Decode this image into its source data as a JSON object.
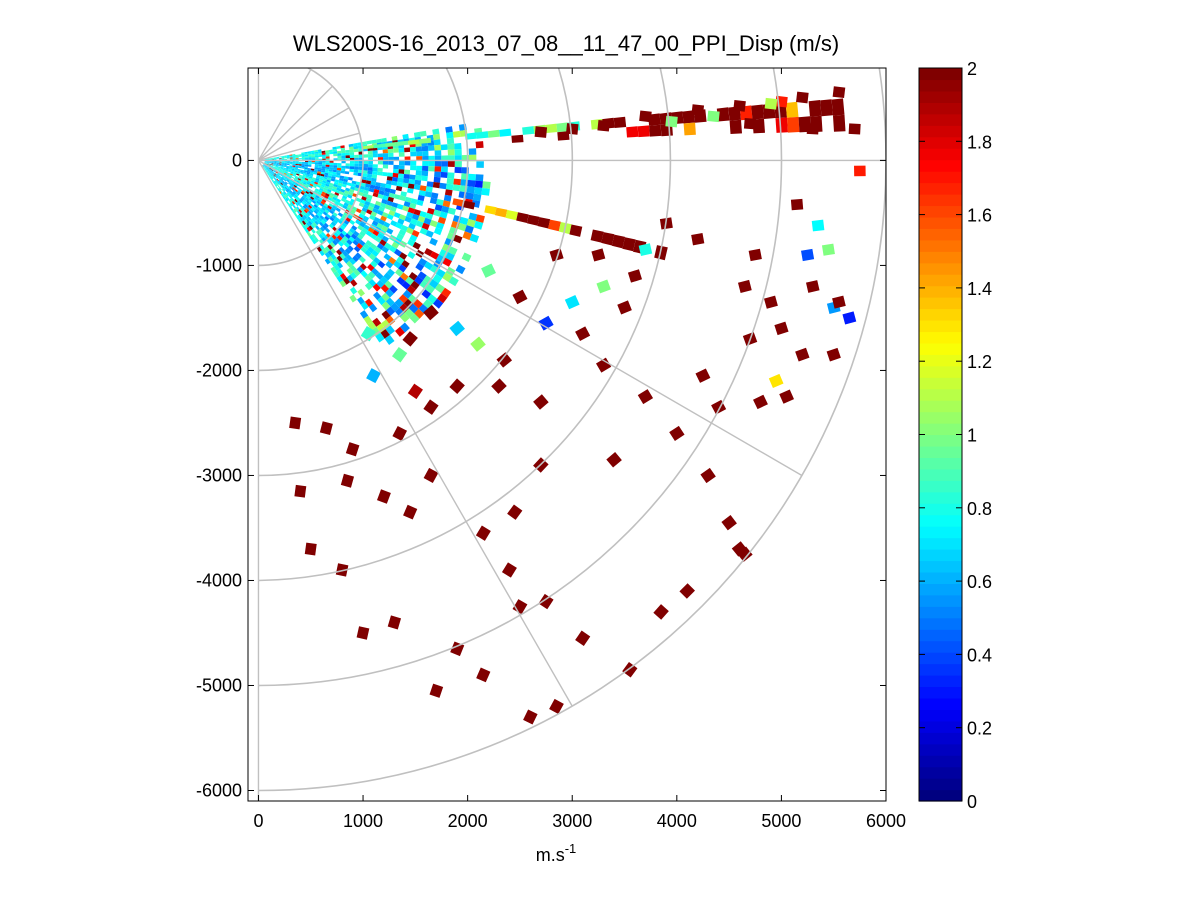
{
  "chart_data": {
    "type": "heatmap",
    "subtype": "polar-ppi-scan",
    "title": "WLS200S-16_2013_07_08__11_47_00_PPI_Disp (m/s)",
    "xlabel": "m.s",
    "xlabel_superscript": "-1",
    "ylabel": "",
    "xlim": [
      -100,
      6000
    ],
    "ylim": [
      -6100,
      880
    ],
    "xticks": [
      0,
      1000,
      2000,
      3000,
      4000,
      5000,
      6000
    ],
    "xtick_labels": [
      "0",
      "1000",
      "2000",
      "3000",
      "4000",
      "5000",
      "6000"
    ],
    "yticks": [
      0,
      -1000,
      -2000,
      -3000,
      -4000,
      -5000,
      -6000
    ],
    "ytick_labels": [
      "0",
      "-1000",
      "-2000",
      "-3000",
      "-4000",
      "-5000",
      "-6000"
    ],
    "polar_grid": {
      "origin": [
        0,
        0
      ],
      "range_rings": [
        1000,
        2000,
        3000,
        4000,
        5000,
        6000
      ],
      "radial_angles_deg": [
        60,
        45,
        30,
        15,
        0,
        -30,
        -60
      ],
      "radial_lengths": [
        1000,
        1000,
        1000,
        1000,
        6000,
        6000,
        6000
      ]
    },
    "scan": {
      "azimuth_start_deg": 10,
      "azimuth_end_deg": -75,
      "range_min": 60,
      "range_max": 5950,
      "dense_core_range": 2000,
      "dense_core_azimuth_start_deg": 10,
      "dense_core_azimuth_end_deg": -55
    },
    "colorbar": {
      "colormap": "jet",
      "min": 0,
      "max": 2,
      "ticks": [
        0,
        0.2,
        0.4,
        0.6,
        0.8,
        1,
        1.2,
        1.4,
        1.6,
        1.8,
        2
      ],
      "tick_labels": [
        "0",
        "0.2",
        "0.4",
        "0.6",
        "0.8",
        "1",
        "1.2",
        "1.4",
        "1.6",
        "1.8",
        "2"
      ]
    },
    "scattered_cells": [
      [
        5550,
        650,
        2
      ],
      [
        5200,
        600,
        2
      ],
      [
        4600,
        520,
        2
      ],
      [
        4200,
        480,
        2
      ],
      [
        3700,
        420,
        2
      ],
      [
        3300,
        330,
        2
      ],
      [
        3000,
        300,
        2
      ],
      [
        2700,
        270,
        2
      ],
      [
        5000,
        560,
        1.7
      ],
      [
        4900,
        540,
        1.1
      ],
      [
        4350,
        420,
        1.0
      ],
      [
        5700,
        300,
        2
      ],
      [
        5300,
        300,
        2
      ],
      [
        4700,
        350,
        2
      ],
      [
        3950,
        370,
        1.0
      ],
      [
        5750,
        -100,
        1.7
      ],
      [
        5350,
        -620,
        0.75
      ],
      [
        5450,
        -850,
        1.0
      ],
      [
        5300,
        -1200,
        2
      ],
      [
        5500,
        -1400,
        0.55
      ],
      [
        5650,
        -1500,
        0.3
      ],
      [
        5550,
        -1350,
        2
      ],
      [
        5500,
        -1850,
        2
      ],
      [
        5200,
        -1850,
        2
      ],
      [
        4950,
        -2100,
        1.3
      ],
      [
        4800,
        -2300,
        2
      ],
      [
        5050,
        -2250,
        2
      ],
      [
        5150,
        -420,
        2
      ],
      [
        5250,
        -900,
        0.4
      ],
      [
        5000,
        -1600,
        2
      ],
      [
        4900,
        -1350,
        2
      ],
      [
        4650,
        -1200,
        2
      ],
      [
        4750,
        -900,
        2
      ],
      [
        3600,
        -1100,
        2
      ],
      [
        3300,
        -1200,
        1.0
      ],
      [
        3000,
        -1350,
        0.7
      ],
      [
        2750,
        -1550,
        0.35
      ],
      [
        3100,
        -1650,
        2
      ],
      [
        2500,
        -1300,
        2
      ],
      [
        2200,
        -1050,
        0.95
      ],
      [
        1900,
        -1600,
        0.65
      ],
      [
        2100,
        -1750,
        1.05
      ],
      [
        2350,
        -1900,
        2
      ],
      [
        2300,
        -2150,
        2
      ],
      [
        2700,
        -2300,
        2
      ],
      [
        1650,
        -1450,
        2
      ],
      [
        1450,
        -1700,
        2
      ],
      [
        3300,
        -1950,
        2
      ],
      [
        3700,
        -2250,
        2
      ],
      [
        4000,
        -2600,
        2
      ],
      [
        4300,
        -3000,
        2
      ],
      [
        4500,
        -3450,
        2
      ],
      [
        4650,
        -3750,
        2
      ],
      [
        3400,
        -2850,
        2
      ],
      [
        2700,
        -2900,
        2
      ],
      [
        2450,
        -3350,
        2
      ],
      [
        2150,
        -3550,
        2
      ],
      [
        1650,
        -3000,
        2
      ],
      [
        1450,
        -3350,
        2
      ],
      [
        1200,
        -3200,
        2
      ],
      [
        850,
        -3050,
        2
      ],
      [
        650,
        -2550,
        2
      ],
      [
        350,
        -2500,
        2
      ],
      [
        900,
        -2750,
        2
      ],
      [
        1350,
        -2600,
        2
      ],
      [
        1650,
        -2350,
        2
      ],
      [
        400,
        -3150,
        2
      ],
      [
        500,
        -3700,
        2
      ],
      [
        800,
        -3900,
        2
      ],
      [
        2400,
        -3900,
        2
      ],
      [
        2750,
        -4200,
        2
      ],
      [
        3100,
        -4550,
        2
      ],
      [
        3550,
        -4850,
        2
      ],
      [
        3850,
        -4300,
        2
      ],
      [
        4100,
        -4100,
        2
      ],
      [
        1900,
        -4650,
        2
      ],
      [
        2150,
        -4900,
        2
      ],
      [
        1700,
        -5050,
        2
      ],
      [
        2600,
        -5300,
        2
      ],
      [
        2850,
        -5200,
        2
      ],
      [
        1300,
        -4400,
        2
      ],
      [
        1000,
        -4500,
        2
      ],
      [
        4600,
        -3700,
        2
      ],
      [
        2500,
        -4250,
        2
      ],
      [
        1900,
        -2150,
        2
      ],
      [
        1500,
        -2200,
        1.9
      ],
      [
        1100,
        -2050,
        0.6
      ],
      [
        1350,
        -1850,
        0.95
      ],
      [
        1050,
        -1650,
        0.85
      ],
      [
        2850,
        -900,
        2
      ],
      [
        3250,
        -900,
        2
      ],
      [
        3700,
        -850,
        0.8
      ],
      [
        3900,
        -600,
        2
      ],
      [
        4200,
        -750,
        2
      ],
      [
        3500,
        -1400,
        2
      ],
      [
        4700,
        -1700,
        2
      ],
      [
        4400,
        -2350,
        2
      ],
      [
        4250,
        -2050,
        2
      ]
    ]
  }
}
